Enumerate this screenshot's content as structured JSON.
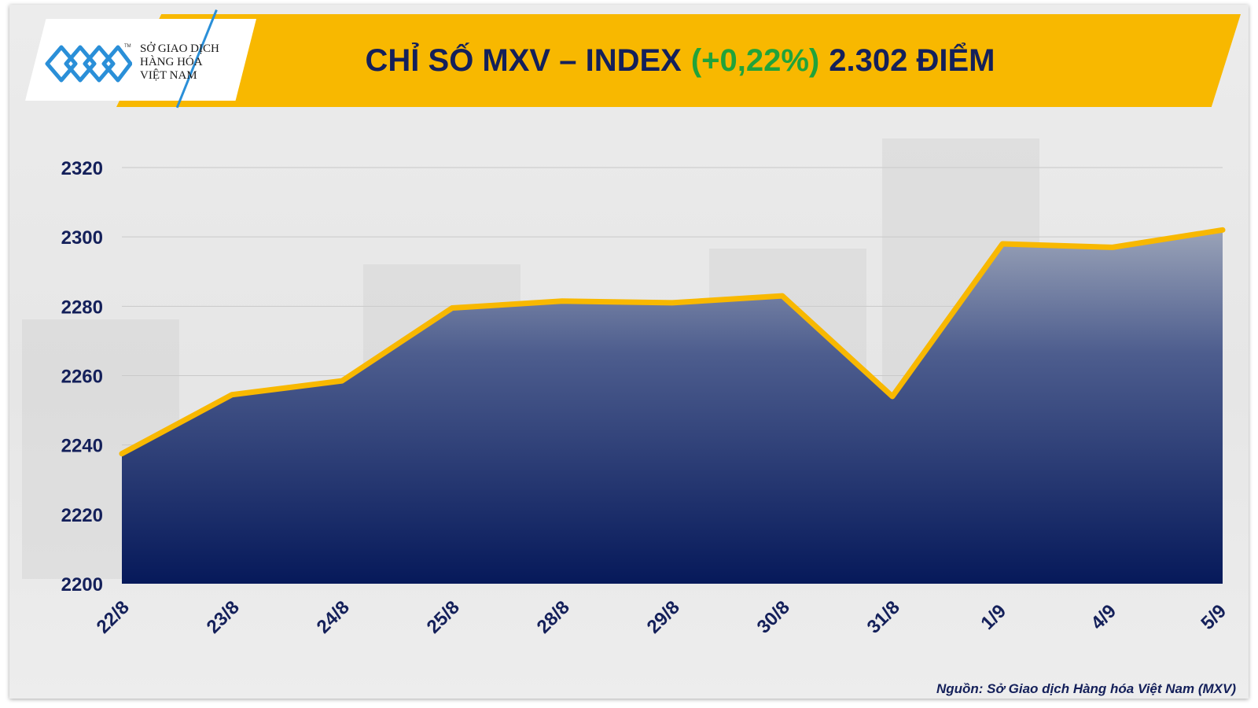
{
  "logo": {
    "lines": [
      "SỞ GIAO DỊCH",
      "HÀNG HÓA",
      "VIỆT NAM"
    ],
    "tm": "TM",
    "icon": "mxv-chain-logo-icon"
  },
  "header": {
    "title_main": "CHỈ SỐ MXV – INDEX",
    "title_change": "(+0,22%)",
    "title_value": "2.302 ĐIỂM"
  },
  "source": "Nguồn: Sở Giao dịch Hàng hóa Việt Nam (MXV)",
  "colors": {
    "header_band": "#F8B800",
    "title_text": "#14205A",
    "change_text": "#21A33A",
    "line": "#F8B800",
    "area_top": "#9AA3B8",
    "area_bottom": "#06195A",
    "logo_blue": "#2A8FD8"
  },
  "chart_data": {
    "type": "area",
    "categories": [
      "22/8",
      "23/8",
      "24/8",
      "25/8",
      "28/8",
      "29/8",
      "30/8",
      "31/8",
      "1/9",
      "4/9",
      "5/9"
    ],
    "series": [
      {
        "values": [
          2237.5,
          2254.5,
          2258.5,
          2279.5,
          2281.5,
          2281,
          2283,
          2254,
          2298,
          2297,
          2302
        ]
      }
    ],
    "y_ticks": [
      "2320",
      "2300",
      "2280",
      "2260",
      "2240",
      "2220",
      "2200"
    ],
    "ylim": [
      2200,
      2320
    ],
    "grid": true,
    "title": "",
    "xlabel": "",
    "ylabel": ""
  }
}
